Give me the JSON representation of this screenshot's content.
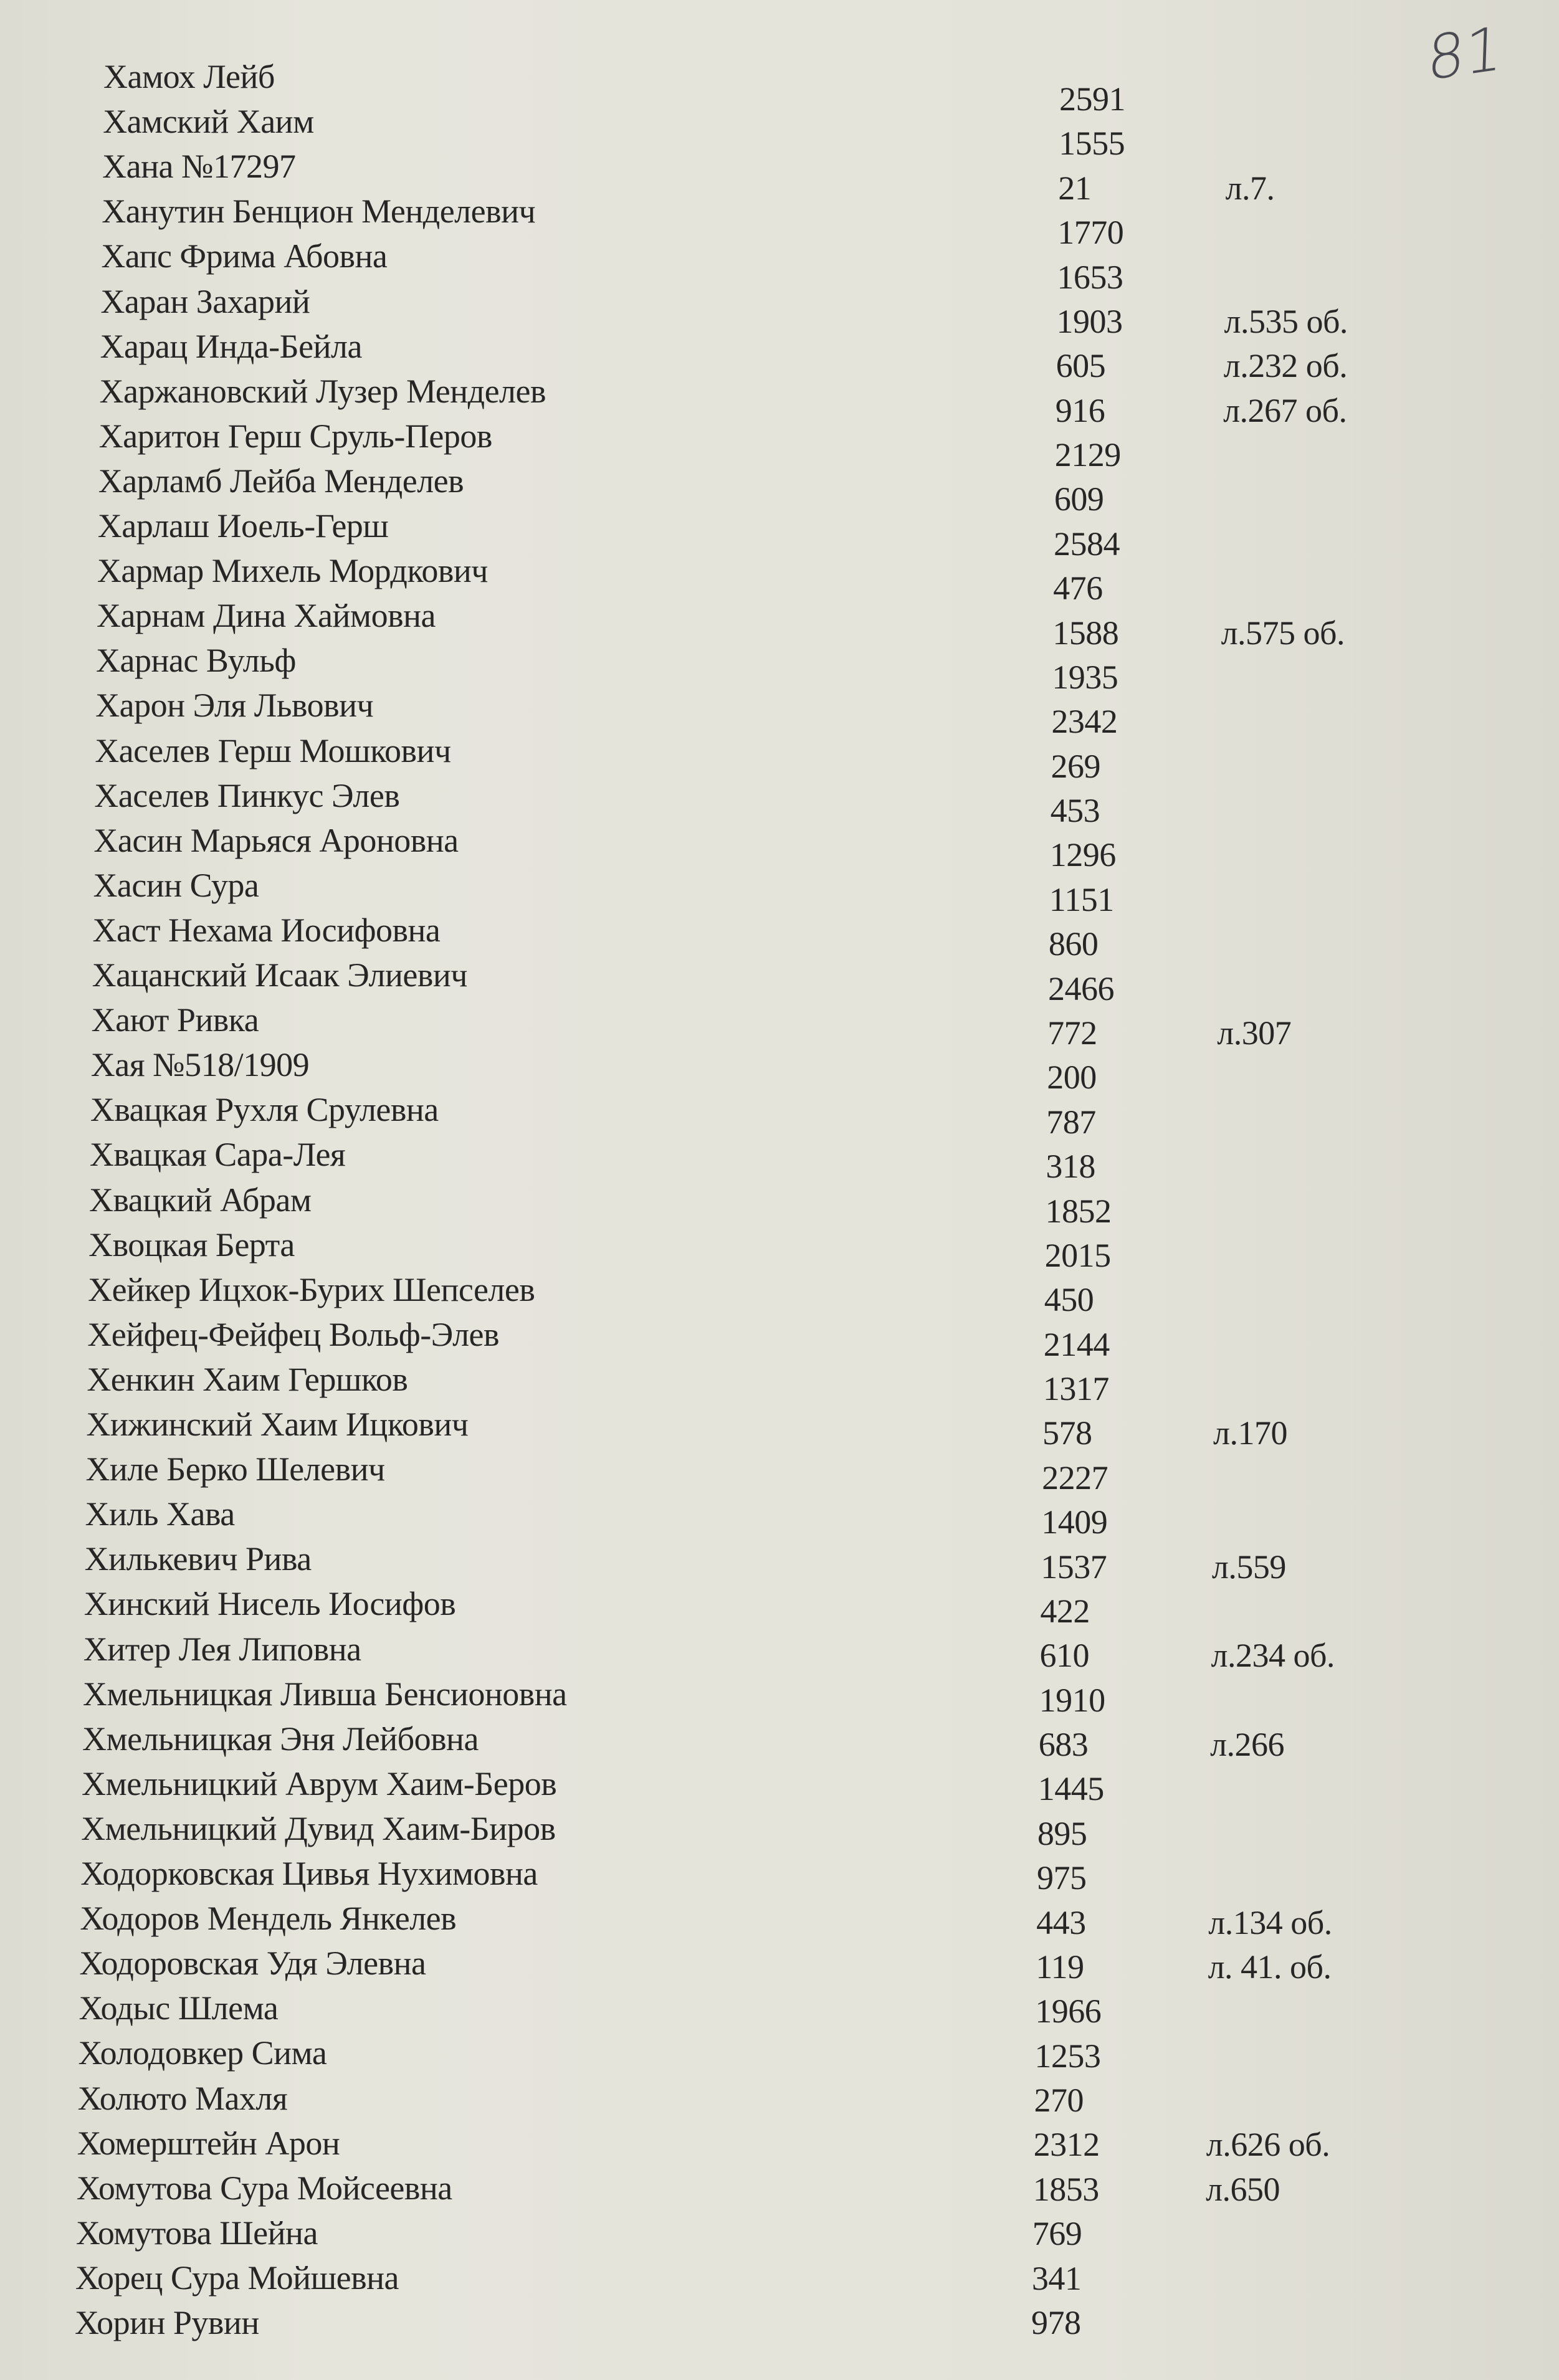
{
  "page_number": "81",
  "entries": [
    {
      "name": "Хамох Лейб",
      "number": "2591",
      "note": ""
    },
    {
      "name": "Хамский Хаим",
      "number": "1555",
      "note": ""
    },
    {
      "name": "Хана  №17297",
      "number": "21",
      "note": "л.7."
    },
    {
      "name": "Ханутин Бенцион Менделевич",
      "number": "1770",
      "note": ""
    },
    {
      "name": "Хапс Фрима Абовна",
      "number": "1653",
      "note": ""
    },
    {
      "name": "Харан Захарий",
      "number": "1903",
      "note": "л.535 об."
    },
    {
      "name": "Харац Инда-Бейла",
      "number": "605",
      "note": "л.232 об."
    },
    {
      "name": "Харжановский Лузер Менделев",
      "number": "916",
      "note": "л.267 об."
    },
    {
      "name": "Харитон Герш Сруль-Перов",
      "number": "2129",
      "note": ""
    },
    {
      "name": "Харламб Лейба Менделев",
      "number": "609",
      "note": ""
    },
    {
      "name": "Харлаш Иоель-Герш",
      "number": "2584",
      "note": ""
    },
    {
      "name": "Хармар Михель Мордкович",
      "number": "476",
      "note": ""
    },
    {
      "name": "Харнам Дина Хаймовна",
      "number": "1588",
      "note": "л.575 об."
    },
    {
      "name": "Харнас Вульф",
      "number": "1935",
      "note": ""
    },
    {
      "name": "Харон Эля Львович",
      "number": "2342",
      "note": ""
    },
    {
      "name": "Хаселев Герш Мошкович",
      "number": "269",
      "note": ""
    },
    {
      "name": "Хаселев Пинкус Элев",
      "number": "453",
      "note": ""
    },
    {
      "name": "Хасин Марьяся Ароновна",
      "number": "1296",
      "note": ""
    },
    {
      "name": "Хасин Сура",
      "number": "1151",
      "note": ""
    },
    {
      "name": "Хаст Нехама Иосифовна",
      "number": "860",
      "note": ""
    },
    {
      "name": "Хацанский Исаак Элиевич",
      "number": "2466",
      "note": ""
    },
    {
      "name": "Хают Ривка",
      "number": "772",
      "note": "л.307"
    },
    {
      "name": "Хая №518/1909",
      "number": "200",
      "note": ""
    },
    {
      "name": "Хвацкая Рухля Срулевна",
      "number": "787",
      "note": ""
    },
    {
      "name": "Хвацкая Сара-Лея",
      "number": "318",
      "note": ""
    },
    {
      "name": "Хвацкий Абрам",
      "number": "1852",
      "note": ""
    },
    {
      "name": "Хвоцкая Берта",
      "number": "2015",
      "note": ""
    },
    {
      "name": "Хейкер Ицхок-Бурих Шепселев",
      "number": "450",
      "note": ""
    },
    {
      "name": "Хейфец-Фейфец Вольф-Элев",
      "number": "2144",
      "note": ""
    },
    {
      "name": "Хенкин Хаим Гершков",
      "number": "1317",
      "note": ""
    },
    {
      "name": "Хижинский Хаим Ицкович",
      "number": "578",
      "note": "л.170"
    },
    {
      "name": "Хиле Берко Шелевич",
      "number": "2227",
      "note": ""
    },
    {
      "name": "Хиль Хава",
      "number": "1409",
      "note": ""
    },
    {
      "name": "Хилькевич Рива",
      "number": "1537",
      "note": "л.559"
    },
    {
      "name": "Хинский Нисель Иосифов",
      "number": "422",
      "note": ""
    },
    {
      "name": "Хитер Лея Липовна",
      "number": "610",
      "note": "л.234 об."
    },
    {
      "name": "Хмельницкая Ливша Бенсионовна",
      "number": "1910",
      "note": ""
    },
    {
      "name": "Хмельницкая Эня Лейбовна",
      "number": "683",
      "note": "л.266"
    },
    {
      "name": "Хмельницкий Аврум Хаим-Беров",
      "number": "1445",
      "note": ""
    },
    {
      "name": "Хмельницкий Дувид Хаим-Биров",
      "number": "895",
      "note": ""
    },
    {
      "name": "Ходорковская Цивья Нухимовна",
      "number": "975",
      "note": ""
    },
    {
      "name": "Ходоров Мендель Янкелев",
      "number": "443",
      "note": "л.134 об."
    },
    {
      "name": "Ходоровская Удя Элевна",
      "number": "119",
      "note": "л. 41. об."
    },
    {
      "name": "Ходыс Шлема",
      "number": "1966",
      "note": ""
    },
    {
      "name": "Холодовкер Сима",
      "number": "1253",
      "note": ""
    },
    {
      "name": "Холюто Махля",
      "number": "270",
      "note": ""
    },
    {
      "name": "Хомерштейн Арон",
      "number": "2312",
      "note": "л.626 об."
    },
    {
      "name": "Хомутова Сура Мойсеевна",
      "number": "1853",
      "note": "л.650"
    },
    {
      "name": "Хомутова Шейна",
      "number": "769",
      "note": ""
    },
    {
      "name": "Хорец Сура Мойшевна",
      "number": "341",
      "note": ""
    },
    {
      "name": "Хорин Рувин",
      "number": "978",
      "note": ""
    }
  ]
}
